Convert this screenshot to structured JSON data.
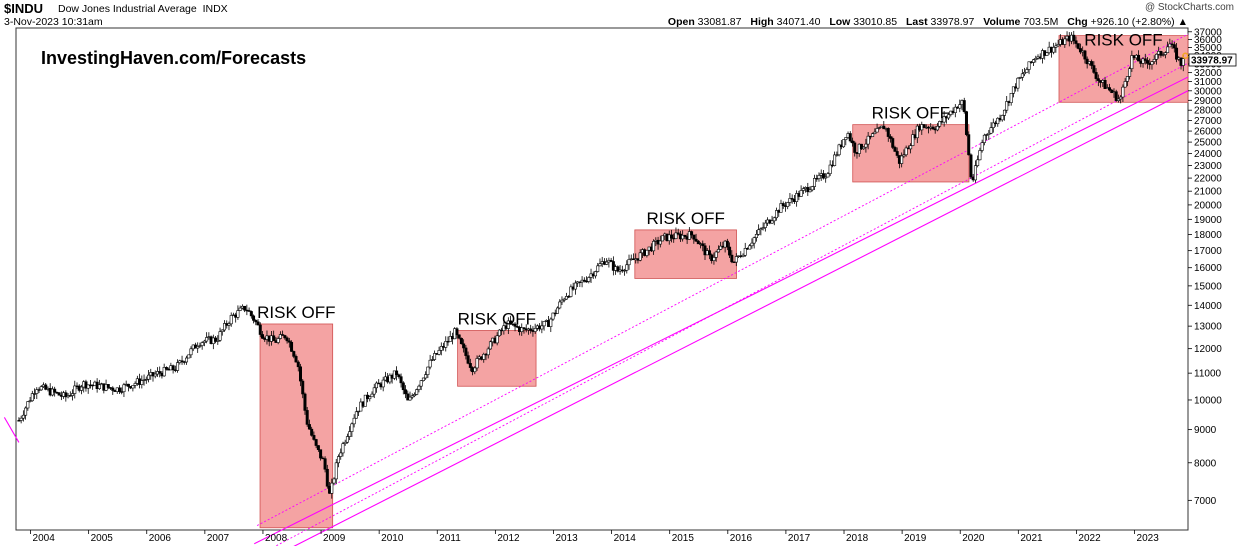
{
  "header": {
    "symbol": "$INDU",
    "name": "Dow Jones Industrial Average",
    "exchange": "INDX",
    "date": "3-Nov-2023 10:31am",
    "credit": "@ StockCharts.com",
    "open_label": "Open",
    "open": "33081.87",
    "high_label": "High",
    "high": "34071.40",
    "low_label": "Low",
    "low": "33010.85",
    "last_label": "Last",
    "last": "33978.97",
    "volume_label": "Volume",
    "volume": "703.5M",
    "chg_label": "Chg",
    "chg": "+926.10 (+2.80%)",
    "chg_arrow": "▲"
  },
  "watermark": "InvestingHaven.com/Forecasts",
  "last_price_tag": "33978.97",
  "chart_data": {
    "type": "candlestick",
    "scale": "log",
    "ylim": [
      6300,
      37500
    ],
    "xlim": [
      2003.75,
      2023.92
    ],
    "y_ticks": [
      7000,
      8000,
      9000,
      10000,
      11000,
      12000,
      13000,
      14000,
      15000,
      16000,
      17000,
      18000,
      19000,
      20000,
      21000,
      22000,
      23000,
      24000,
      25000,
      26000,
      27000,
      28000,
      29000,
      30000,
      31000,
      32000,
      33000,
      34000,
      35000,
      36000,
      37000
    ],
    "x_ticks": [
      "2004",
      "2005",
      "2006",
      "2007",
      "2008",
      "2009",
      "2010",
      "2011",
      "2012",
      "2013",
      "2014",
      "2015",
      "2016",
      "2017",
      "2018",
      "2019",
      "2020",
      "2021",
      "2022",
      "2023"
    ],
    "price_path": [
      [
        2003.8,
        9300
      ],
      [
        2004.1,
        10500
      ],
      [
        2004.6,
        10100
      ],
      [
        2004.9,
        10600
      ],
      [
        2005.5,
        10400
      ],
      [
        2005.9,
        10700
      ],
      [
        2006.2,
        11000
      ],
      [
        2006.5,
        11200
      ],
      [
        2006.9,
        12300
      ],
      [
        2007.2,
        12400
      ],
      [
        2007.45,
        13400
      ],
      [
        2007.7,
        13900
      ],
      [
        2007.85,
        13300
      ],
      [
        2008.0,
        12600
      ],
      [
        2008.2,
        12300
      ],
      [
        2008.4,
        12600
      ],
      [
        2008.6,
        11400
      ],
      [
        2008.75,
        9300
      ],
      [
        2008.9,
        8500
      ],
      [
        2009.05,
        8000
      ],
      [
        2009.15,
        7100
      ],
      [
        2009.3,
        8200
      ],
      [
        2009.6,
        9600
      ],
      [
        2009.9,
        10400
      ],
      [
        2010.3,
        11000
      ],
      [
        2010.5,
        9900
      ],
      [
        2010.9,
        11500
      ],
      [
        2011.3,
        12700
      ],
      [
        2011.6,
        11200
      ],
      [
        2011.8,
        11800
      ],
      [
        2012.2,
        13100
      ],
      [
        2012.5,
        12800
      ],
      [
        2012.9,
        13100
      ],
      [
        2013.2,
        14500
      ],
      [
        2013.6,
        15500
      ],
      [
        2013.9,
        16500
      ],
      [
        2014.1,
        15800
      ],
      [
        2014.6,
        17000
      ],
      [
        2014.9,
        17800
      ],
      [
        2015.4,
        18000
      ],
      [
        2015.7,
        16500
      ],
      [
        2015.95,
        17400
      ],
      [
        2016.1,
        16300
      ],
      [
        2016.5,
        18000
      ],
      [
        2016.9,
        19800
      ],
      [
        2017.3,
        21000
      ],
      [
        2017.7,
        22400
      ],
      [
        2017.95,
        24800
      ],
      [
        2018.05,
        26000
      ],
      [
        2018.2,
        24200
      ],
      [
        2018.7,
        26500
      ],
      [
        2018.95,
        23300
      ],
      [
        2019.3,
        26500
      ],
      [
        2019.6,
        26400
      ],
      [
        2019.95,
        28500
      ],
      [
        2020.05,
        28800
      ],
      [
        2020.2,
        21500
      ],
      [
        2020.4,
        25500
      ],
      [
        2020.7,
        27500
      ],
      [
        2020.95,
        30600
      ],
      [
        2021.3,
        33900
      ],
      [
        2021.6,
        35000
      ],
      [
        2021.9,
        36300
      ],
      [
        2022.1,
        34500
      ],
      [
        2022.4,
        31000
      ],
      [
        2022.5,
        30500
      ],
      [
        2022.75,
        29000
      ],
      [
        2022.95,
        33800
      ],
      [
        2023.2,
        33000
      ],
      [
        2023.5,
        34500
      ],
      [
        2023.6,
        35500
      ],
      [
        2023.8,
        33000
      ],
      [
        2023.84,
        33979
      ]
    ],
    "annotations": [
      {
        "text": "RISK OFF",
        "x0": 2007.95,
        "x1": 2009.2,
        "y0": 6350,
        "y1": 13100
      },
      {
        "text": "RISK OFF",
        "x0": 2011.35,
        "x1": 2012.7,
        "y0": 10500,
        "y1": 12800
      },
      {
        "text": "RISK OFF",
        "x0": 2014.4,
        "x1": 2016.15,
        "y0": 15400,
        "y1": 18300
      },
      {
        "text": "RISK OFF",
        "x0": 2018.15,
        "x1": 2020.15,
        "y0": 21700,
        "y1": 26600
      },
      {
        "text": "RISK OFF",
        "x0": 2021.7,
        "x1": 2023.92,
        "y0": 28800,
        "y1": 36500
      }
    ],
    "trendlines": [
      {
        "style": "solid",
        "points": [
          [
            2003.55,
            9400
          ],
          [
            2003.8,
            8600
          ]
        ]
      },
      {
        "style": "solid",
        "points": [
          [
            2007.85,
            6000
          ],
          [
            2023.92,
            31500
          ]
        ]
      },
      {
        "style": "solid",
        "points": [
          [
            2008.05,
            5650
          ],
          [
            2023.92,
            30000
          ]
        ]
      },
      {
        "style": "dotted",
        "points": [
          [
            2007.5,
            5500
          ],
          [
            2023.92,
            33100
          ]
        ]
      },
      {
        "style": "dotted",
        "points": [
          [
            2007.9,
            6400
          ],
          [
            2023.92,
            36700
          ]
        ]
      }
    ],
    "colors": {
      "up": "#000000",
      "down": "#000000",
      "box": "#f08080",
      "trendline": "#ff00ff",
      "last_marker": "#f5a623"
    },
    "grid": false
  }
}
